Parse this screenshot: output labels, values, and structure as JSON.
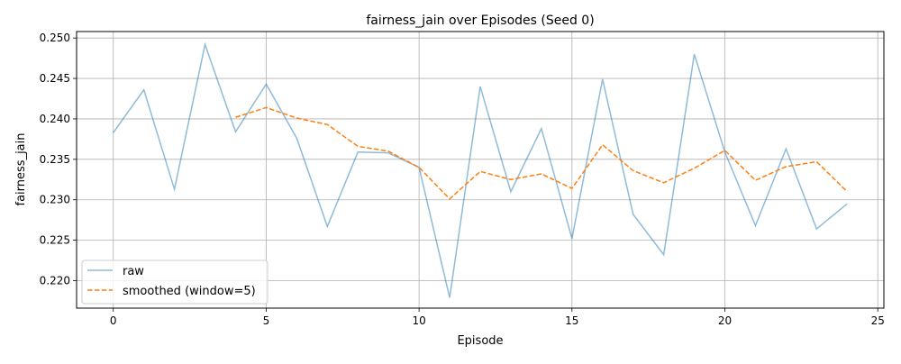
{
  "chart_data": {
    "type": "line",
    "title": "fairness_jain over Episodes (Seed 0)",
    "xlabel": "Episode",
    "ylabel": "fairness_jain",
    "xlim": [
      -1.2,
      25.2
    ],
    "ylim": [
      0.2166,
      0.2508
    ],
    "x_ticks": [
      0,
      5,
      10,
      15,
      20,
      25
    ],
    "x_tick_labels": [
      "0",
      "5",
      "10",
      "15",
      "20",
      "25"
    ],
    "y_ticks": [
      0.22,
      0.225,
      0.23,
      0.235,
      0.24,
      0.245,
      0.25
    ],
    "y_tick_labels": [
      "0.220",
      "0.225",
      "0.230",
      "0.235",
      "0.240",
      "0.245",
      "0.250"
    ],
    "grid": true,
    "legend_position": "lower-left",
    "series": [
      {
        "name": "raw",
        "color": "#1f77b4",
        "style": "solid",
        "x": [
          0,
          1,
          2,
          3,
          4,
          5,
          6,
          7,
          8,
          9,
          10,
          11,
          12,
          13,
          14,
          15,
          16,
          17,
          18,
          19,
          20,
          21,
          22,
          23,
          24
        ],
        "values": [
          0.2383,
          0.2436,
          0.2313,
          0.2492,
          0.2384,
          0.2443,
          0.2376,
          0.2267,
          0.2359,
          0.2358,
          0.234,
          0.2179,
          0.244,
          0.231,
          0.2388,
          0.2252,
          0.2449,
          0.2282,
          0.2232,
          0.248,
          0.2359,
          0.2268,
          0.2363,
          0.2264,
          0.2295
        ]
      },
      {
        "name": "smoothed (window=5)",
        "color": "#ff7f0e",
        "style": "dashed",
        "x": [
          4,
          5,
          6,
          7,
          8,
          9,
          10,
          11,
          12,
          13,
          14,
          15,
          16,
          17,
          18,
          19,
          20,
          21,
          22,
          23,
          24
        ],
        "values": [
          0.2402,
          0.2414,
          0.2401,
          0.2393,
          0.2366,
          0.236,
          0.234,
          0.2301,
          0.2335,
          0.2325,
          0.2332,
          0.2314,
          0.2368,
          0.2336,
          0.2321,
          0.2339,
          0.2361,
          0.2324,
          0.2341,
          0.2347,
          0.231
        ]
      }
    ]
  }
}
